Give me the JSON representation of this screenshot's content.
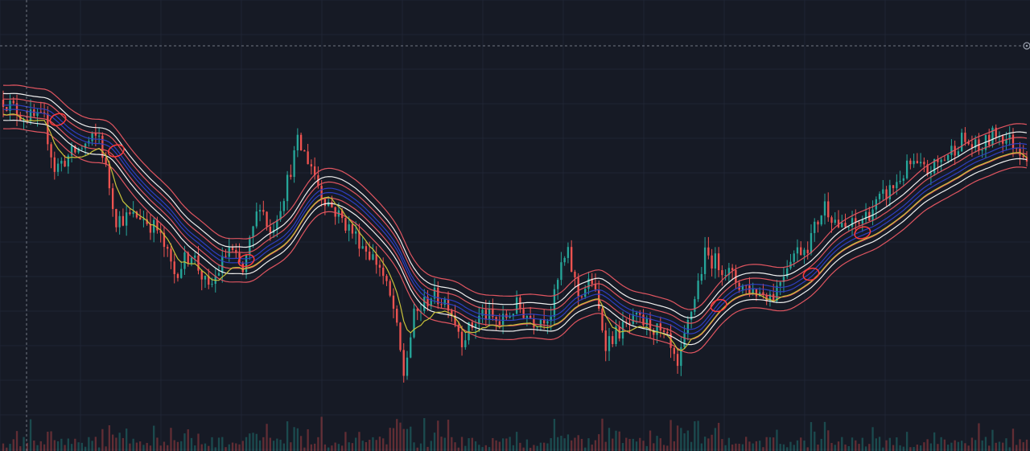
{
  "colors": {
    "background": "#161a25",
    "grid": "#1f2433",
    "up": "#26a69a",
    "down": "#ef5350",
    "crosshair": "#9aa0ad",
    "marker": "#ff3b3b"
  },
  "chart_data": {
    "type": "candlestick",
    "grid": true,
    "ylim": [
      0,
      100
    ],
    "x_count": 300,
    "price_anchors": [
      [
        0,
        88
      ],
      [
        5,
        84
      ],
      [
        12,
        82
      ],
      [
        15,
        69
      ],
      [
        20,
        73
      ],
      [
        28,
        78
      ],
      [
        33,
        55
      ],
      [
        40,
        56
      ],
      [
        45,
        52
      ],
      [
        50,
        40
      ],
      [
        55,
        46
      ],
      [
        60,
        35
      ],
      [
        66,
        47
      ],
      [
        70,
        40
      ],
      [
        75,
        60
      ],
      [
        78,
        51
      ],
      [
        82,
        62
      ],
      [
        86,
        76
      ],
      [
        90,
        70
      ],
      [
        93,
        62
      ],
      [
        98,
        56
      ],
      [
        105,
        48
      ],
      [
        110,
        42
      ],
      [
        114,
        30
      ],
      [
        117,
        12
      ],
      [
        120,
        28
      ],
      [
        125,
        34
      ],
      [
        130,
        32
      ],
      [
        134,
        22
      ],
      [
        140,
        29
      ],
      [
        145,
        26
      ],
      [
        150,
        31
      ],
      [
        155,
        27
      ],
      [
        160,
        29
      ],
      [
        163,
        42
      ],
      [
        165,
        45
      ],
      [
        168,
        34
      ],
      [
        172,
        38
      ],
      [
        176,
        21
      ],
      [
        180,
        24
      ],
      [
        185,
        27
      ],
      [
        190,
        25
      ],
      [
        194,
        21
      ],
      [
        197,
        13
      ],
      [
        200,
        26
      ],
      [
        205,
        45
      ],
      [
        210,
        42
      ],
      [
        215,
        37
      ],
      [
        220,
        35
      ],
      [
        225,
        34
      ],
      [
        230,
        45
      ],
      [
        235,
        48
      ],
      [
        240,
        59
      ],
      [
        245,
        52
      ],
      [
        250,
        54
      ],
      [
        255,
        59
      ],
      [
        260,
        64
      ],
      [
        265,
        70
      ],
      [
        270,
        68
      ],
      [
        275,
        72
      ],
      [
        280,
        77
      ],
      [
        285,
        74
      ],
      [
        290,
        79
      ],
      [
        295,
        76
      ],
      [
        299,
        73
      ]
    ],
    "bands": [
      {
        "name": "",
        "color": "#e05560",
        "offset": 6.0
      },
      {
        "name": "",
        "color": "#f0f0f0",
        "offset": 3.7
      },
      {
        "name": "",
        "color": "#e05560",
        "offset": 2.2
      },
      {
        "name": "",
        "color": "#2e3fbf",
        "offset": 0.5
      },
      {
        "name": "",
        "color": "#2e3fbf",
        "offset": -0.7
      },
      {
        "name": "",
        "color": "#e05560",
        "offset": -2.2
      },
      {
        "name": "",
        "color": "#f0f0f0",
        "offset": -3.7
      },
      {
        "name": "",
        "color": "#e05560",
        "offset": -6.0
      }
    ],
    "yellow_band": {
      "color": "#c9c23a",
      "smoothing": 9
    },
    "markers": [
      16,
      33,
      71,
      209,
      236,
      251
    ]
  }
}
